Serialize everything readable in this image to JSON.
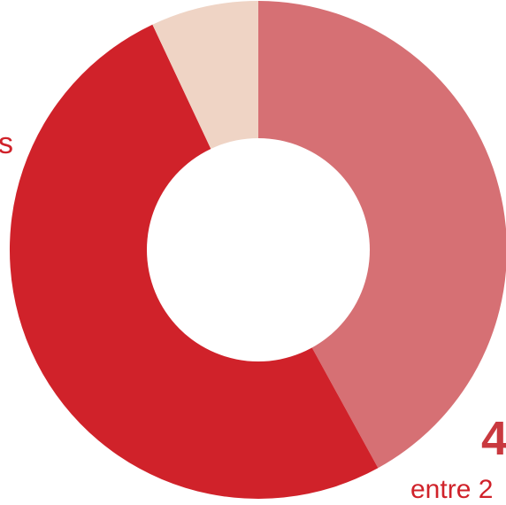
{
  "chart_data": {
    "type": "pie",
    "donut": true,
    "series": [
      {
        "values": [
          42,
          51,
          7
        ],
        "colors": [
          "#D67074",
          "#D0222A",
          "#EFD4C5"
        ]
      }
    ],
    "visible_labels": [
      {
        "text": "s",
        "slice_index": 1,
        "color": "#D0222A"
      },
      {
        "text": "4",
        "slice_index": 0,
        "color": "#C9393F"
      },
      {
        "text": "entre 2",
        "slice_index": 0,
        "color": "#D0222A"
      }
    ]
  }
}
